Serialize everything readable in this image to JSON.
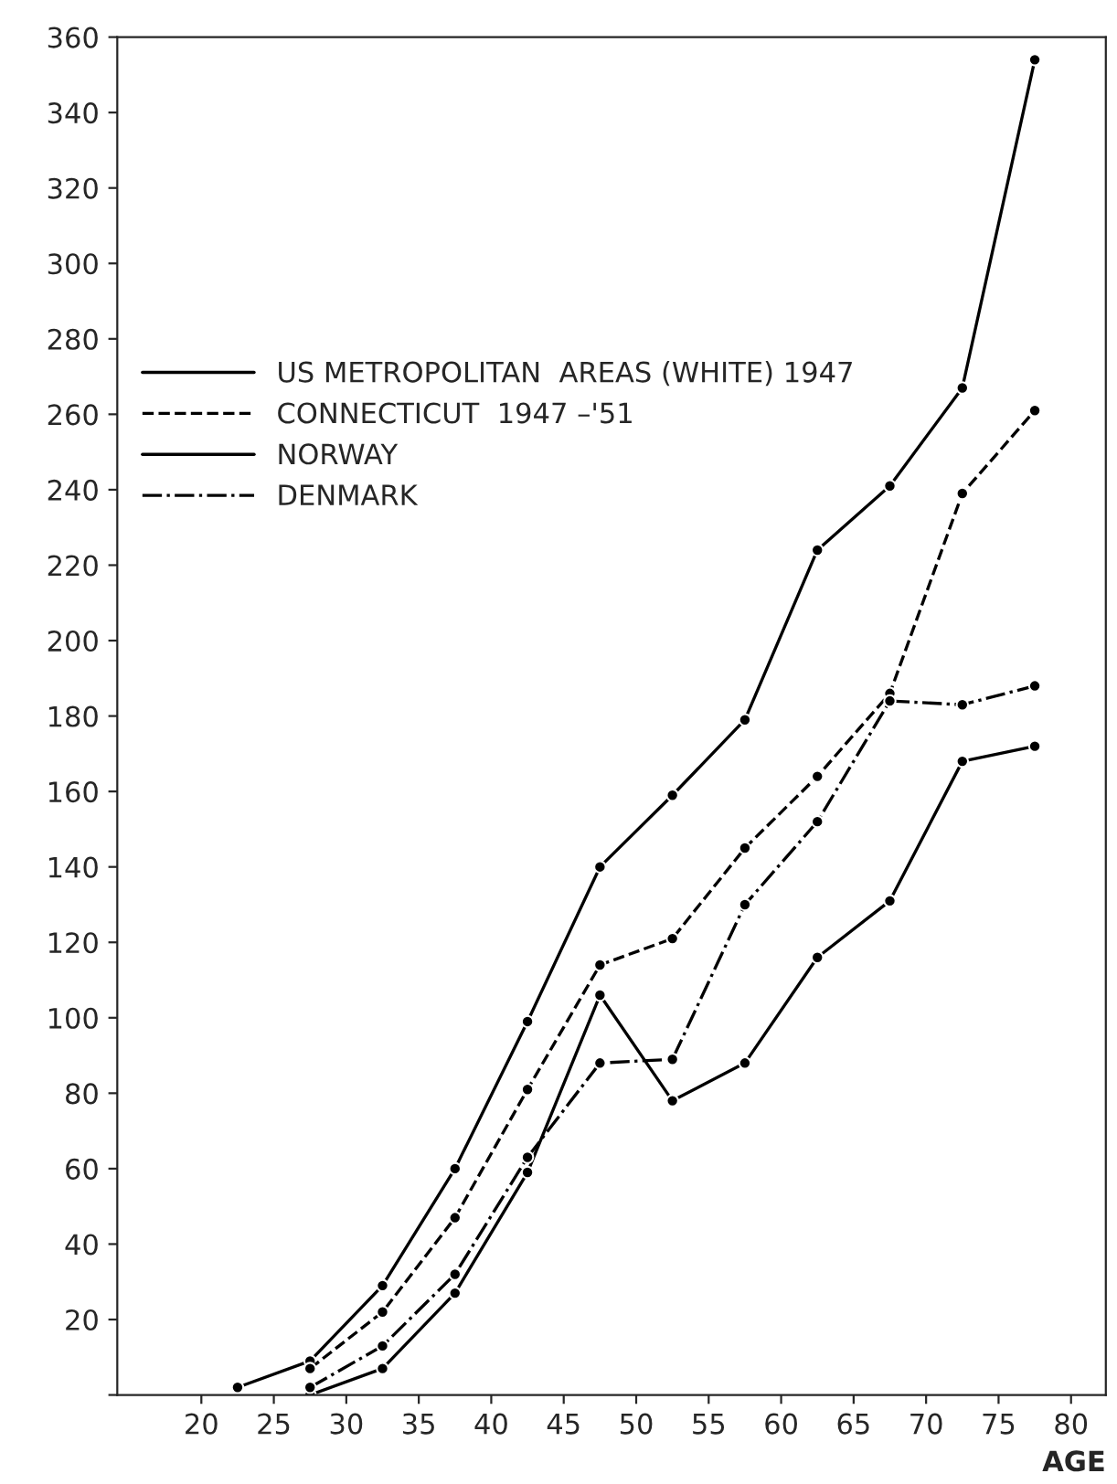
{
  "chart_data": {
    "type": "line",
    "xlabel": "AGE",
    "xlim": [
      14.2,
      82.4
    ],
    "xticks": [
      20,
      25,
      30,
      35,
      40,
      45,
      50,
      55,
      60,
      65,
      70,
      75,
      80
    ],
    "ylim": [
      0,
      360
    ],
    "yticks": [
      {
        "value": 0,
        "label": null
      },
      20,
      40,
      60,
      80,
      100,
      120,
      140,
      160,
      180,
      200,
      220,
      240,
      260,
      280,
      300,
      320,
      340,
      360
    ],
    "grid": false,
    "legend": "top left",
    "marker": "circle",
    "series": [
      {
        "name": "US METROPOLITAN  AREAS (WHITE) 1947",
        "color": "#000000",
        "line_style": "solid",
        "x": [
          22.5,
          27.5,
          32.5,
          37.5,
          42.5,
          47.5,
          52.5,
          57.5,
          62.5,
          67.5,
          72.5,
          77.5
        ],
        "values": [
          2,
          9,
          29,
          60,
          99,
          140,
          159,
          179,
          224,
          241,
          267,
          354
        ]
      },
      {
        "name": "CONNECTICUT  1947 –'51",
        "color": "#000000",
        "line_style": "dashed",
        "x": [
          27.5,
          32.5,
          37.5,
          42.5,
          47.5,
          52.5,
          57.5,
          62.5,
          67.5,
          72.5,
          77.5
        ],
        "values": [
          7,
          22,
          47,
          81,
          114,
          121,
          145,
          164,
          186,
          239,
          261
        ]
      },
      {
        "name": "NORWAY",
        "color": "#000000",
        "line_style": "solid",
        "x": [
          27.5,
          32.5,
          37.5,
          42.5,
          47.5,
          52.5,
          57.5,
          62.5,
          67.5,
          72.5,
          77.5
        ],
        "values": [
          0,
          7,
          27,
          59,
          106,
          78,
          88,
          116,
          131,
          168,
          172
        ]
      },
      {
        "name": "DENMARK",
        "color": "#000000",
        "line_style": "dashdot",
        "x": [
          27.5,
          32.5,
          37.5,
          42.5,
          47.5,
          52.5,
          57.5,
          62.5,
          67.5,
          72.5,
          77.5
        ],
        "values": [
          2,
          13,
          32,
          63,
          88,
          89,
          130,
          152,
          184,
          183,
          188
        ]
      }
    ]
  }
}
